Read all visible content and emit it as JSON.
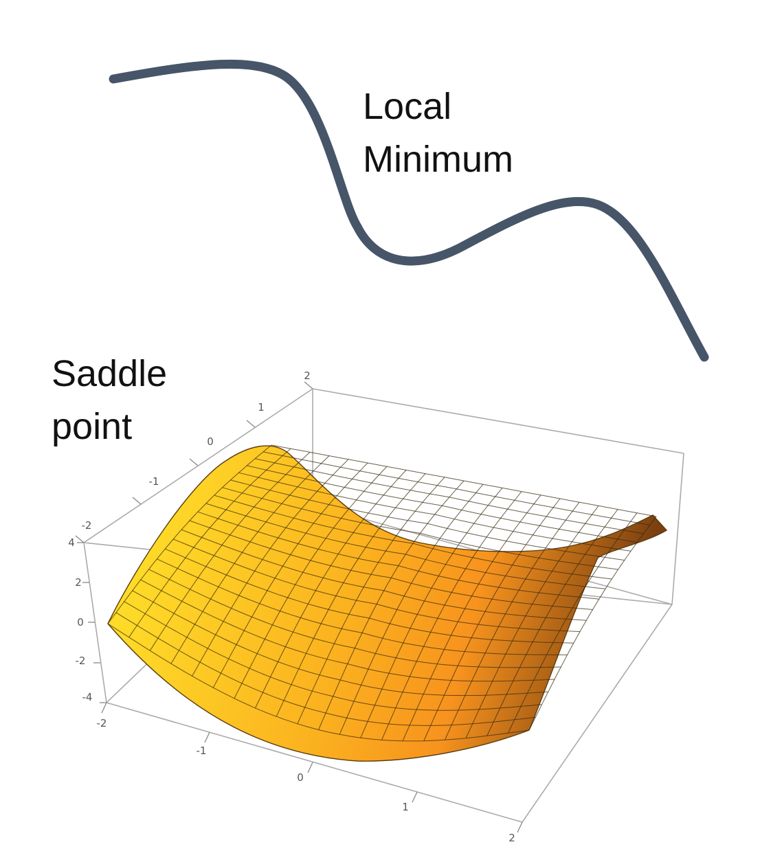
{
  "labels": {
    "local_min_line1": "Local",
    "local_min_line2": "Minimum",
    "saddle_line1": "Saddle",
    "saddle_line2": "point"
  },
  "colors": {
    "curve": "#475569",
    "surface_light": "#ffe62a",
    "surface_mid": "#f7931e",
    "surface_dark": "#7a4010",
    "mesh": "#3a2a10",
    "box": "#aaaaaa"
  },
  "axes": {
    "x_ticks": [
      "-2",
      "-1",
      "0",
      "1",
      "2"
    ],
    "y_ticks": [
      "-2",
      "-1",
      "0",
      "1",
      "2"
    ],
    "z_ticks": [
      "4",
      "2",
      "0",
      "-2",
      "-4"
    ]
  }
}
